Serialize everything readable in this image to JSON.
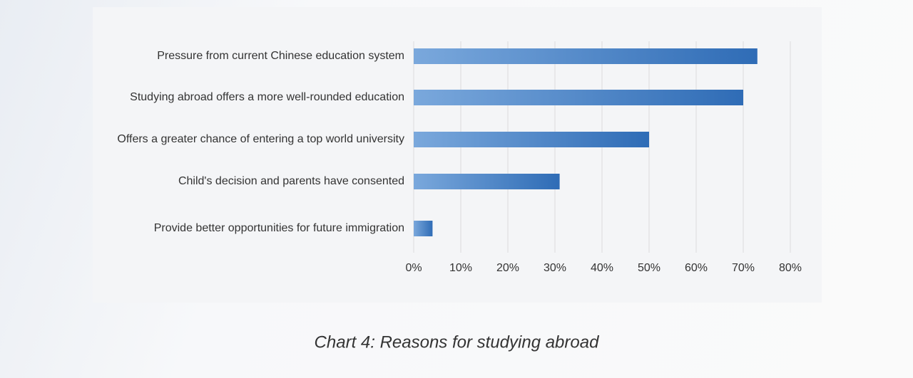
{
  "chart_data": {
    "type": "bar",
    "orientation": "horizontal",
    "title": "Chart 4: Reasons for studying abroad",
    "categories": [
      "Pressure from current Chinese education system",
      "Studying abroad offers a more well-rounded education",
      "Offers a greater chance of entering a top world university",
      "Child's decision and parents have consented",
      "Provide better opportunities for future immigration"
    ],
    "values": [
      73,
      70,
      50,
      31,
      4
    ],
    "color": [
      "#7aa8dc",
      "#2f6cb6"
    ],
    "xlim": [
      0,
      80
    ],
    "xticks": [
      {
        "value": 0,
        "label": "0%"
      },
      {
        "value": 10,
        "label": "10%"
      },
      {
        "value": 20,
        "label": "20%"
      },
      {
        "value": 30,
        "label": "30%"
      },
      {
        "value": 40,
        "label": "40%"
      },
      {
        "value": 50,
        "label": "50%"
      },
      {
        "value": 60,
        "label": "60%"
      },
      {
        "value": 70,
        "label": "70%"
      },
      {
        "value": 80,
        "label": "80%"
      }
    ],
    "grid": true
  }
}
